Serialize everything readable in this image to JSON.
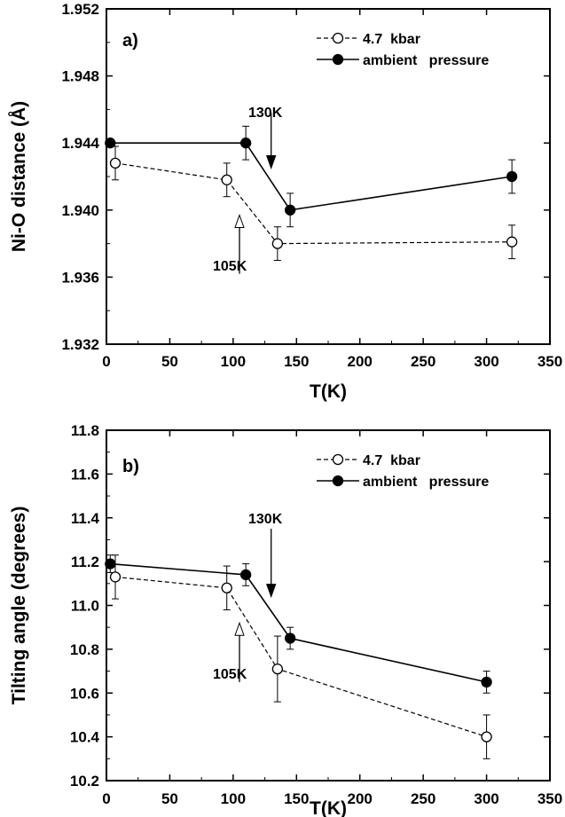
{
  "chart_data": [
    {
      "type": "line",
      "panel_label": "a)",
      "xlabel": "T(K)",
      "ylabel": "Ni-O distance (Å)",
      "xlim": [
        0,
        350
      ],
      "ylim": [
        1.932,
        1.952
      ],
      "xticks": [
        "0",
        "50",
        "100",
        "150",
        "200",
        "250",
        "300",
        "350"
      ],
      "yticks": [
        "1.932",
        "1.936",
        "1.940",
        "1.944",
        "1.948",
        "1.952"
      ],
      "legend_position": "top-right",
      "series": [
        {
          "name": "4.7  kbar",
          "marker": "open-circle",
          "line": "dashed",
          "points": [
            {
              "x": 7,
              "y": 1.9428,
              "err": 0.001
            },
            {
              "x": 95,
              "y": 1.9418,
              "err": 0.001
            },
            {
              "x": 135,
              "y": 1.938,
              "err": 0.001
            },
            {
              "x": 320,
              "y": 1.9381,
              "err": 0.001
            }
          ]
        },
        {
          "name": "ambient   pressure",
          "marker": "filled-circle",
          "line": "solid",
          "points": [
            {
              "x": 3,
              "y": 1.944,
              "err": 0
            },
            {
              "x": 110,
              "y": 1.944,
              "err": 0.001
            },
            {
              "x": 145,
              "y": 1.94,
              "err": 0.001
            },
            {
              "x": 320,
              "y": 1.942,
              "err": 0.001
            }
          ]
        }
      ],
      "annotations": [
        {
          "text": "130K",
          "arrow": "filled",
          "arrow_x": 130,
          "arrow_y_from": 1.9458,
          "arrow_y_to": 1.9425
        },
        {
          "text": "105K",
          "arrow": "open",
          "arrow_x": 105,
          "arrow_y_from": 1.9362,
          "arrow_y_to": 1.9397
        }
      ]
    },
    {
      "type": "line",
      "panel_label": "b)",
      "xlabel": "T(K)",
      "ylabel": "Tilting angle (degrees)",
      "xlim": [
        0,
        350
      ],
      "ylim": [
        10.2,
        11.8
      ],
      "xticks": [
        "0",
        "50",
        "100",
        "150",
        "200",
        "250",
        "300",
        "350"
      ],
      "yticks": [
        "10.2",
        "10.4",
        "10.6",
        "10.8",
        "11.0",
        "11.2",
        "11.4",
        "11.6",
        "11.8"
      ],
      "legend_position": "top-right",
      "series": [
        {
          "name": "4.7  kbar",
          "marker": "open-circle",
          "line": "dashed",
          "points": [
            {
              "x": 7,
              "y": 11.13,
              "err": 0.1
            },
            {
              "x": 95,
              "y": 11.08,
              "err": 0.1
            },
            {
              "x": 135,
              "y": 10.71,
              "err": 0.15
            },
            {
              "x": 300,
              "y": 10.4,
              "err": 0.1
            }
          ]
        },
        {
          "name": "ambient   pressure",
          "marker": "filled-circle",
          "line": "solid",
          "points": [
            {
              "x": 3,
              "y": 11.19,
              "err": 0.04
            },
            {
              "x": 110,
              "y": 11.14,
              "err": 0.05
            },
            {
              "x": 145,
              "y": 10.85,
              "err": 0.05
            },
            {
              "x": 300,
              "y": 10.65,
              "err": 0.05
            }
          ]
        }
      ],
      "annotations": [
        {
          "text": "130K",
          "arrow": "filled",
          "arrow_x": 130,
          "arrow_y_from": 11.35,
          "arrow_y_to": 11.04
        },
        {
          "text": "105K",
          "arrow": "open",
          "arrow_x": 105,
          "arrow_y_from": 10.65,
          "arrow_y_to": 10.92
        }
      ]
    }
  ]
}
